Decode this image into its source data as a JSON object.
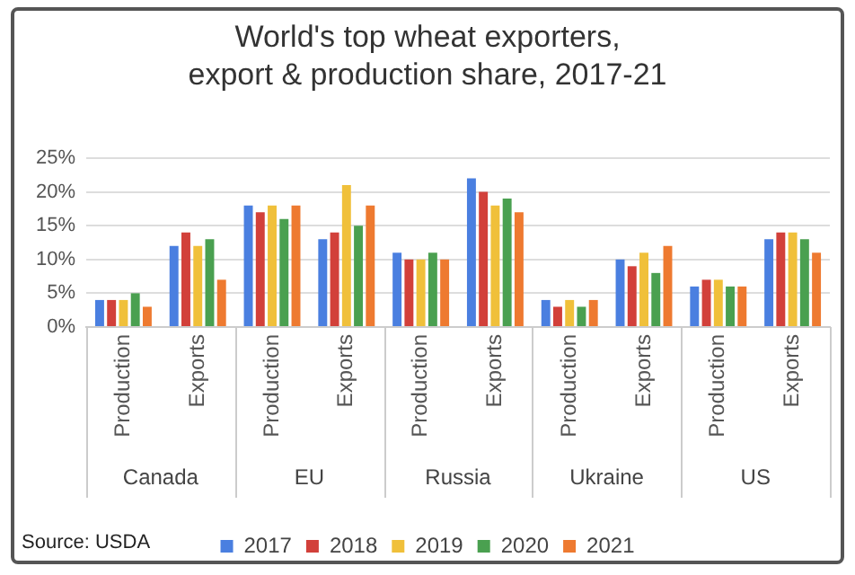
{
  "chart_data": {
    "type": "bar",
    "title": "World's top wheat exporters,\nexport & production share, 2017-21",
    "categories": [
      "Production",
      "Exports",
      "Production",
      "Exports",
      "Production",
      "Exports",
      "Production",
      "Exports",
      "Production",
      "Exports"
    ],
    "series": [
      {
        "name": "2017",
        "color": "#4a7fe0",
        "values": [
          4,
          12,
          18,
          13,
          11,
          22,
          4,
          10,
          6,
          13
        ]
      },
      {
        "name": "2018",
        "color": "#d2403a",
        "values": [
          4,
          14,
          17,
          14,
          10,
          20,
          3,
          9,
          7,
          14
        ]
      },
      {
        "name": "2019",
        "color": "#f0c03a",
        "values": [
          4,
          12,
          18,
          21,
          10,
          18,
          4,
          11,
          7,
          14
        ]
      },
      {
        "name": "2020",
        "color": "#4aa050",
        "values": [
          5,
          13,
          16,
          15,
          11,
          19,
          3,
          8,
          6,
          13
        ]
      },
      {
        "name": "2021",
        "color": "#ee7a30",
        "values": [
          3,
          7,
          18,
          18,
          10,
          17,
          4,
          12,
          6,
          11
        ]
      }
    ],
    "ylim": [
      0,
      25
    ],
    "yticks": [
      {
        "value": 0,
        "label": "0%"
      },
      {
        "value": 5,
        "label": "5%"
      },
      {
        "value": 10,
        "label": "10%"
      },
      {
        "value": 15,
        "label": "15%"
      },
      {
        "value": 20,
        "label": "20%"
      },
      {
        "value": 25,
        "label": "25%"
      }
    ],
    "grid": "y",
    "legend": "bottom",
    "annotations": [
      "Canada",
      "EU",
      "Russia",
      "Ukraine",
      "US",
      "Source: USDA"
    ]
  }
}
